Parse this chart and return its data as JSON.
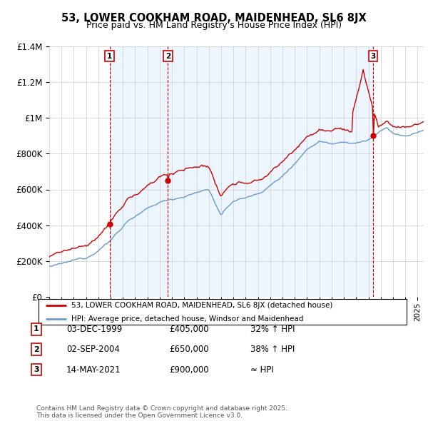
{
  "title": "53, LOWER COOKHAM ROAD, MAIDENHEAD, SL6 8JX",
  "subtitle": "Price paid vs. HM Land Registry's House Price Index (HPI)",
  "title_fontsize": 10.5,
  "subtitle_fontsize": 9,
  "sale_years_float": [
    1999.92,
    2004.67,
    2021.37
  ],
  "sale_prices": [
    405000,
    650000,
    900000
  ],
  "sale_labels": [
    "1",
    "2",
    "3"
  ],
  "sale_info": [
    {
      "label": "1",
      "date": "03-DEC-1999",
      "price": "£405,000",
      "vs_hpi": "32% ↑ HPI"
    },
    {
      "label": "2",
      "date": "02-SEP-2004",
      "price": "£650,000",
      "vs_hpi": "38% ↑ HPI"
    },
    {
      "label": "3",
      "date": "14-MAY-2021",
      "price": "£900,000",
      "vs_hpi": "≈ HPI"
    }
  ],
  "property_line_color": "#cc0000",
  "hpi_line_color": "#6699cc",
  "shade_color": "#ddeeff",
  "vline_color": "#cc0000",
  "background_color": "#ffffff",
  "grid_color": "#cccccc",
  "ylim": [
    0,
    1400000
  ],
  "yticks": [
    0,
    200000,
    400000,
    600000,
    800000,
    1000000,
    1200000,
    1400000
  ],
  "xlim_start": 1995.0,
  "xlim_end": 2025.5,
  "footer": "Contains HM Land Registry data © Crown copyright and database right 2025.\nThis data is licensed under the Open Government Licence v3.0.",
  "legend_property": "53, LOWER COOKHAM ROAD, MAIDENHEAD, SL6 8JX (detached house)",
  "legend_hpi": "HPI: Average price, detached house, Windsor and Maidenhead"
}
